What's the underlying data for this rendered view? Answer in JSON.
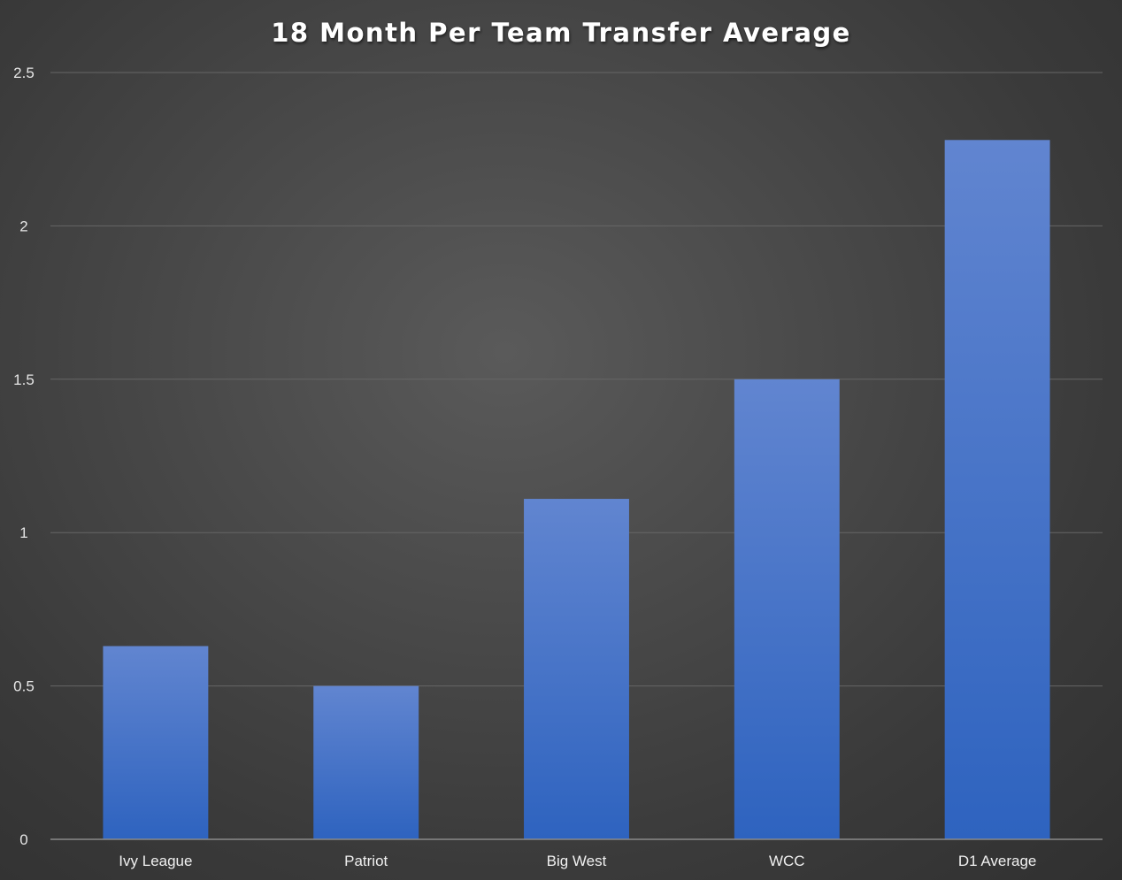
{
  "chart_data": {
    "type": "bar",
    "title": "18 Month Per Team Transfer Average",
    "xlabel": "",
    "ylabel": "",
    "categories": [
      "Ivy League",
      "Patriot",
      "Big West",
      "WCC",
      "D1 Average"
    ],
    "values": [
      0.63,
      0.5,
      1.11,
      1.5,
      2.28
    ],
    "yticks": [
      "0",
      "0.5",
      "1",
      "1.5",
      "2",
      "2.5"
    ],
    "ylim": [
      0,
      2.5
    ],
    "grid": true,
    "legend": "none",
    "colors": {
      "bar_top": "#6185d0",
      "bar_bottom": "#2e63bf",
      "background_center": "#5a5a5a",
      "background_edge": "#303030",
      "gridline": "#666666"
    }
  }
}
